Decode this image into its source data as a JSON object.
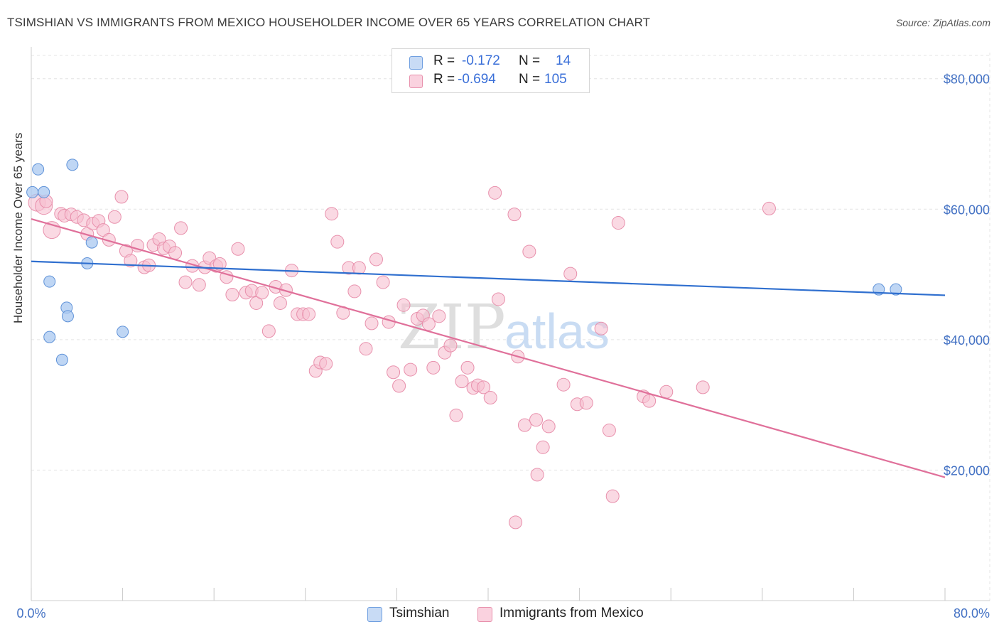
{
  "title": "TSIMSHIAN VS IMMIGRANTS FROM MEXICO HOUSEHOLDER INCOME OVER 65 YEARS CORRELATION CHART",
  "source": "Source: ZipAtlas.com",
  "watermark": {
    "zip": "ZIP",
    "atlas": "atlas"
  },
  "legend": [
    {
      "r_label": "R =",
      "r_value": "-0.172",
      "n_label": "N =",
      "n_value": "14",
      "color": "#a9c8f0",
      "border": "#6f9fe0"
    },
    {
      "r_label": "R =",
      "r_value": "-0.694",
      "n_label": "N =",
      "n_value": "105",
      "color": "#f7bfd0",
      "border": "#e890ac"
    }
  ],
  "chart_data": {
    "type": "scatter",
    "title": "TSIMSHIAN VS IMMIGRANTS FROM MEXICO HOUSEHOLDER INCOME OVER 65 YEARS CORRELATION CHART",
    "xlabel": "",
    "ylabel": "Householder Income Over 65 years",
    "xlim": [
      0,
      80
    ],
    "ylim": [
      0,
      84000
    ],
    "x_tick_labels": [
      "0.0%",
      "80.0%"
    ],
    "y_ticks": [
      20000,
      40000,
      60000,
      80000
    ],
    "y_tick_labels": [
      "$20,000",
      "$40,000",
      "$60,000",
      "$80,000"
    ],
    "grid": true,
    "legend_position": "bottom",
    "series": [
      {
        "name": "Tsimshian",
        "color": "#4d8fd6",
        "fill": "#a9c8f0",
        "points": [
          [
            0.1,
            62600
          ],
          [
            0.6,
            66100
          ],
          [
            1.1,
            62600
          ],
          [
            1.6,
            48900
          ],
          [
            1.6,
            40400
          ],
          [
            2.7,
            36900
          ],
          [
            3.1,
            44900
          ],
          [
            3.2,
            43600
          ],
          [
            3.6,
            66800
          ],
          [
            4.9,
            51700
          ],
          [
            5.3,
            54900
          ],
          [
            8.0,
            41200
          ],
          [
            74.2,
            47700
          ],
          [
            75.7,
            47700
          ]
        ],
        "trend": [
          [
            0,
            52000
          ],
          [
            80,
            46800
          ]
        ]
      },
      {
        "name": "Immigrants from Mexico",
        "color": "#e0709a",
        "fill": "#f7bfd0",
        "points": [
          [
            0.5,
            61000
          ],
          [
            1.1,
            60500
          ],
          [
            1.3,
            61200
          ],
          [
            1.8,
            56800
          ],
          [
            2.6,
            59300
          ],
          [
            2.9,
            59000
          ],
          [
            3.5,
            59200
          ],
          [
            4.0,
            58800
          ],
          [
            4.6,
            58300
          ],
          [
            4.9,
            56200
          ],
          [
            5.4,
            57800
          ],
          [
            5.9,
            58200
          ],
          [
            6.3,
            56800
          ],
          [
            6.8,
            55300
          ],
          [
            7.3,
            58800
          ],
          [
            7.9,
            61900
          ],
          [
            8.3,
            53600
          ],
          [
            8.7,
            52100
          ],
          [
            9.3,
            54400
          ],
          [
            9.9,
            51100
          ],
          [
            10.3,
            51400
          ],
          [
            10.7,
            54500
          ],
          [
            11.2,
            55400
          ],
          [
            11.6,
            54000
          ],
          [
            12.1,
            54300
          ],
          [
            12.6,
            53300
          ],
          [
            13.1,
            57100
          ],
          [
            13.5,
            48800
          ],
          [
            14.1,
            51300
          ],
          [
            14.7,
            48400
          ],
          [
            15.2,
            51100
          ],
          [
            15.6,
            52500
          ],
          [
            16.2,
            51300
          ],
          [
            16.5,
            51600
          ],
          [
            17.1,
            49600
          ],
          [
            17.6,
            46900
          ],
          [
            18.1,
            53900
          ],
          [
            18.8,
            47200
          ],
          [
            19.3,
            47500
          ],
          [
            19.7,
            45600
          ],
          [
            20.2,
            47200
          ],
          [
            20.8,
            41300
          ],
          [
            21.4,
            48100
          ],
          [
            21.8,
            45600
          ],
          [
            22.3,
            47600
          ],
          [
            22.8,
            50600
          ],
          [
            23.3,
            43900
          ],
          [
            23.8,
            43900
          ],
          [
            24.3,
            43900
          ],
          [
            24.9,
            35200
          ],
          [
            25.3,
            36500
          ],
          [
            25.8,
            36300
          ],
          [
            26.3,
            59300
          ],
          [
            26.8,
            55000
          ],
          [
            27.3,
            44100
          ],
          [
            27.8,
            51000
          ],
          [
            28.3,
            47400
          ],
          [
            28.7,
            51000
          ],
          [
            29.3,
            38600
          ],
          [
            29.8,
            42500
          ],
          [
            30.2,
            52300
          ],
          [
            30.8,
            48800
          ],
          [
            31.3,
            42700
          ],
          [
            31.7,
            35000
          ],
          [
            32.2,
            32900
          ],
          [
            32.6,
            45300
          ],
          [
            33.2,
            35400
          ],
          [
            33.8,
            43200
          ],
          [
            34.3,
            43700
          ],
          [
            34.8,
            42400
          ],
          [
            35.2,
            35700
          ],
          [
            35.7,
            43600
          ],
          [
            36.2,
            38000
          ],
          [
            36.7,
            39100
          ],
          [
            37.2,
            28400
          ],
          [
            37.7,
            33600
          ],
          [
            38.2,
            35700
          ],
          [
            38.7,
            32600
          ],
          [
            39.1,
            33000
          ],
          [
            39.6,
            32700
          ],
          [
            40.2,
            31100
          ],
          [
            40.6,
            62500
          ],
          [
            40.9,
            46200
          ],
          [
            42.3,
            59200
          ],
          [
            42.6,
            37400
          ],
          [
            43.2,
            26900
          ],
          [
            43.6,
            53500
          ],
          [
            44.2,
            27700
          ],
          [
            44.8,
            23500
          ],
          [
            44.3,
            19300
          ],
          [
            45.3,
            26700
          ],
          [
            46.6,
            33100
          ],
          [
            47.2,
            50100
          ],
          [
            47.8,
            30100
          ],
          [
            48.6,
            30300
          ],
          [
            49.9,
            41700
          ],
          [
            50.6,
            26100
          ],
          [
            50.9,
            16000
          ],
          [
            51.4,
            57900
          ],
          [
            53.6,
            31300
          ],
          [
            54.1,
            30600
          ],
          [
            55.6,
            32000
          ],
          [
            58.8,
            32700
          ],
          [
            64.6,
            60100
          ],
          [
            42.4,
            12000
          ]
        ],
        "trend": [
          [
            0,
            58500
          ],
          [
            80,
            18900
          ]
        ]
      }
    ]
  }
}
